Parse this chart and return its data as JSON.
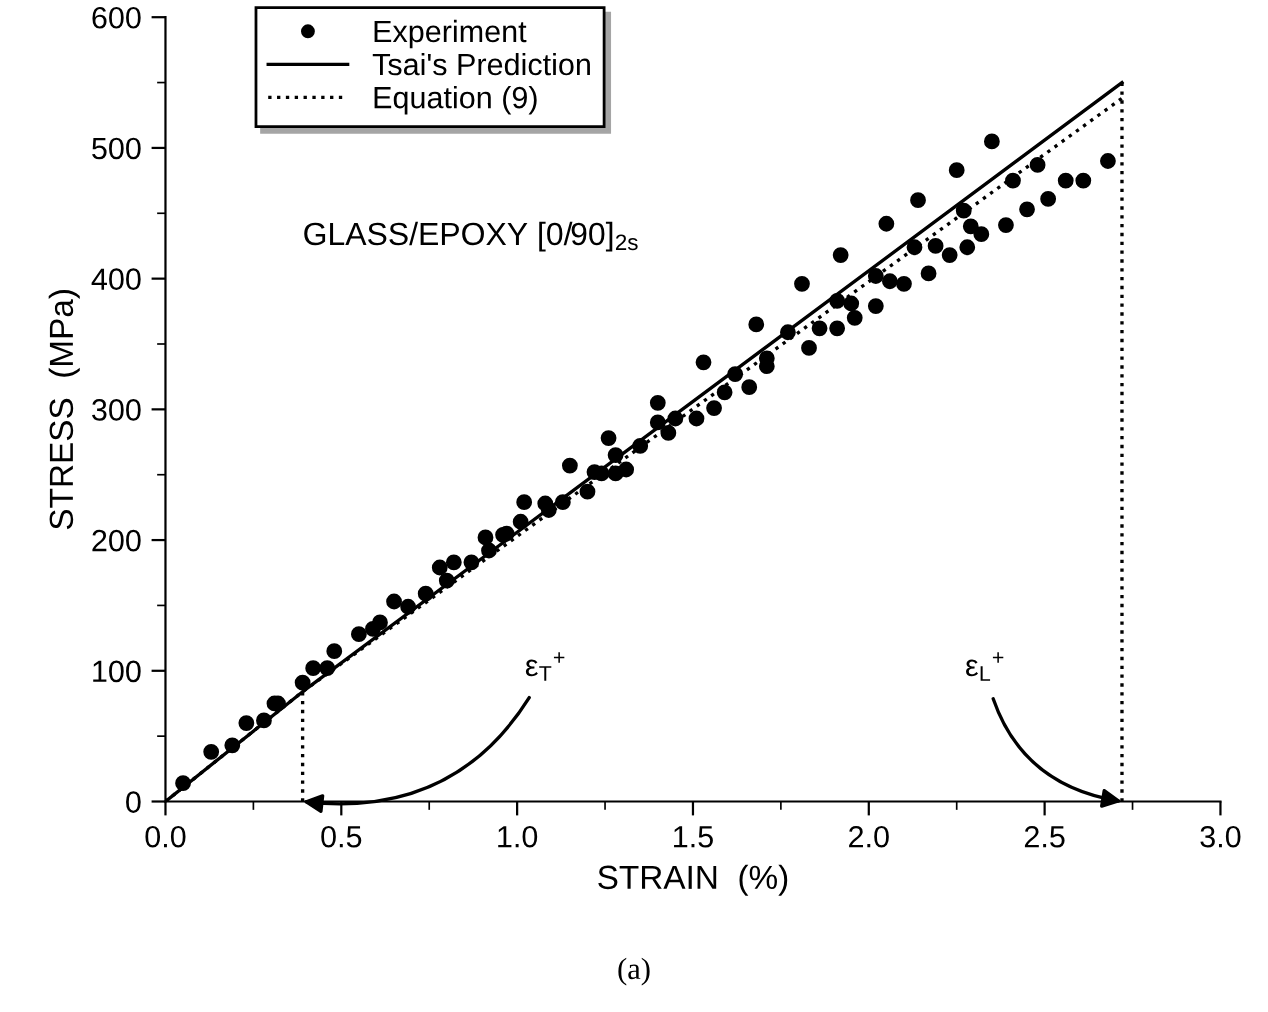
{
  "chart_data": {
    "type": "scatter",
    "xlabel": "STRAIN  (%)",
    "ylabel": "STRESS  (MPa)",
    "xlim": [
      0,
      3.0
    ],
    "ylim": [
      0,
      600
    ],
    "xticks": [
      {
        "value": 0,
        "label": "0.0"
      },
      {
        "value": 0.25,
        "label": null
      },
      {
        "value": 0.5,
        "label": "0.5"
      },
      {
        "value": 0.75,
        "label": null
      },
      {
        "value": 1.0,
        "label": "1.0"
      },
      {
        "value": 1.25,
        "label": null
      },
      {
        "value": 1.5,
        "label": "1.5"
      },
      {
        "value": 1.75,
        "label": null
      },
      {
        "value": 2.0,
        "label": "2.0"
      },
      {
        "value": 2.25,
        "label": null
      },
      {
        "value": 2.5,
        "label": "2.5"
      },
      {
        "value": 2.75,
        "label": null
      },
      {
        "value": 3.0,
        "label": "3.0"
      }
    ],
    "yticks": [
      0,
      {
        "value": 50,
        "label": null
      },
      100,
      {
        "value": 150,
        "label": null
      },
      200,
      {
        "value": 250,
        "label": null
      },
      300,
      {
        "value": 350,
        "label": null
      },
      400,
      {
        "value": 450,
        "label": null
      },
      500,
      {
        "value": 550,
        "label": null
      },
      600
    ],
    "legend": "top left",
    "grid": false,
    "series": [
      {
        "name": "Experiment",
        "marker": "circle",
        "color": "#000000",
        "x": [
          0.05,
          0.13,
          0.19,
          0.23,
          0.28,
          0.31,
          0.32,
          0.39,
          0.42,
          0.46,
          0.48,
          0.55,
          0.59,
          0.61,
          0.65,
          0.69,
          0.74,
          0.78,
          0.8,
          0.82,
          0.87,
          0.91,
          0.92,
          0.96,
          0.97,
          1.01,
          1.02,
          1.08,
          1.09,
          1.13,
          1.15,
          1.2,
          1.22,
          1.24,
          1.26,
          1.28,
          1.28,
          1.31,
          1.35,
          1.4,
          1.4,
          1.43,
          1.45,
          1.51,
          1.53,
          1.56,
          1.59,
          1.62,
          1.66,
          1.68,
          1.71,
          1.71,
          1.77,
          1.81,
          1.83,
          1.86,
          1.91,
          1.91,
          1.92,
          1.95,
          1.96,
          2.02,
          2.02,
          2.05,
          2.06,
          2.1,
          2.13,
          2.14,
          2.17,
          2.19,
          2.23,
          2.25,
          2.27,
          2.28,
          2.29,
          2.32,
          2.35,
          2.39,
          2.41,
          2.45,
          2.48,
          2.51,
          2.56,
          2.61,
          2.68
        ],
        "values": [
          14,
          38,
          43,
          60,
          62,
          75,
          75,
          91,
          102,
          102,
          115,
          128,
          132,
          137,
          153,
          149,
          159,
          179,
          169,
          183,
          183,
          202,
          192,
          204,
          205,
          214,
          229,
          228,
          223,
          229,
          257,
          237,
          252,
          251,
          278,
          251,
          265,
          254,
          272,
          305,
          290,
          282,
          293,
          293,
          336,
          301,
          313,
          327,
          317,
          365,
          339,
          333,
          359,
          396,
          347,
          362,
          362,
          383,
          418,
          381,
          370,
          402,
          379,
          442,
          398,
          396,
          424,
          460,
          404,
          425,
          418,
          483,
          452,
          424,
          440,
          434,
          505,
          441,
          475,
          453,
          487,
          461,
          475,
          475,
          490
        ]
      },
      {
        "name": "Tsai's Prediction",
        "type": "line",
        "line_style": "solid",
        "color": "#000000",
        "x": [
          0,
          0.39,
          2.72
        ],
        "values": [
          0,
          84,
          550
        ]
      },
      {
        "name": "Equation (9)",
        "type": "line",
        "line_style": "dotted",
        "color": "#000000",
        "x": [
          0,
          0.39,
          2.72
        ],
        "values": [
          0,
          84,
          538
        ]
      }
    ],
    "ref_lines": [
      {
        "axis": "x",
        "value": 0.39,
        "line_style": "dotted",
        "color": "#000000"
      },
      {
        "axis": "x",
        "value": 2.72,
        "line_style": "dotted",
        "color": "#000000"
      }
    ],
    "annotations": [
      "GLASS/EPOXY [0/90]$_{2s}$",
      "(a)",
      {
        "text": "ε$_{T}$$^{+}$",
        "x": 0.39,
        "y": 0
      },
      {
        "text": "ε$_{L}$$^{+}$",
        "x": 2.72,
        "y": 0
      }
    ]
  }
}
